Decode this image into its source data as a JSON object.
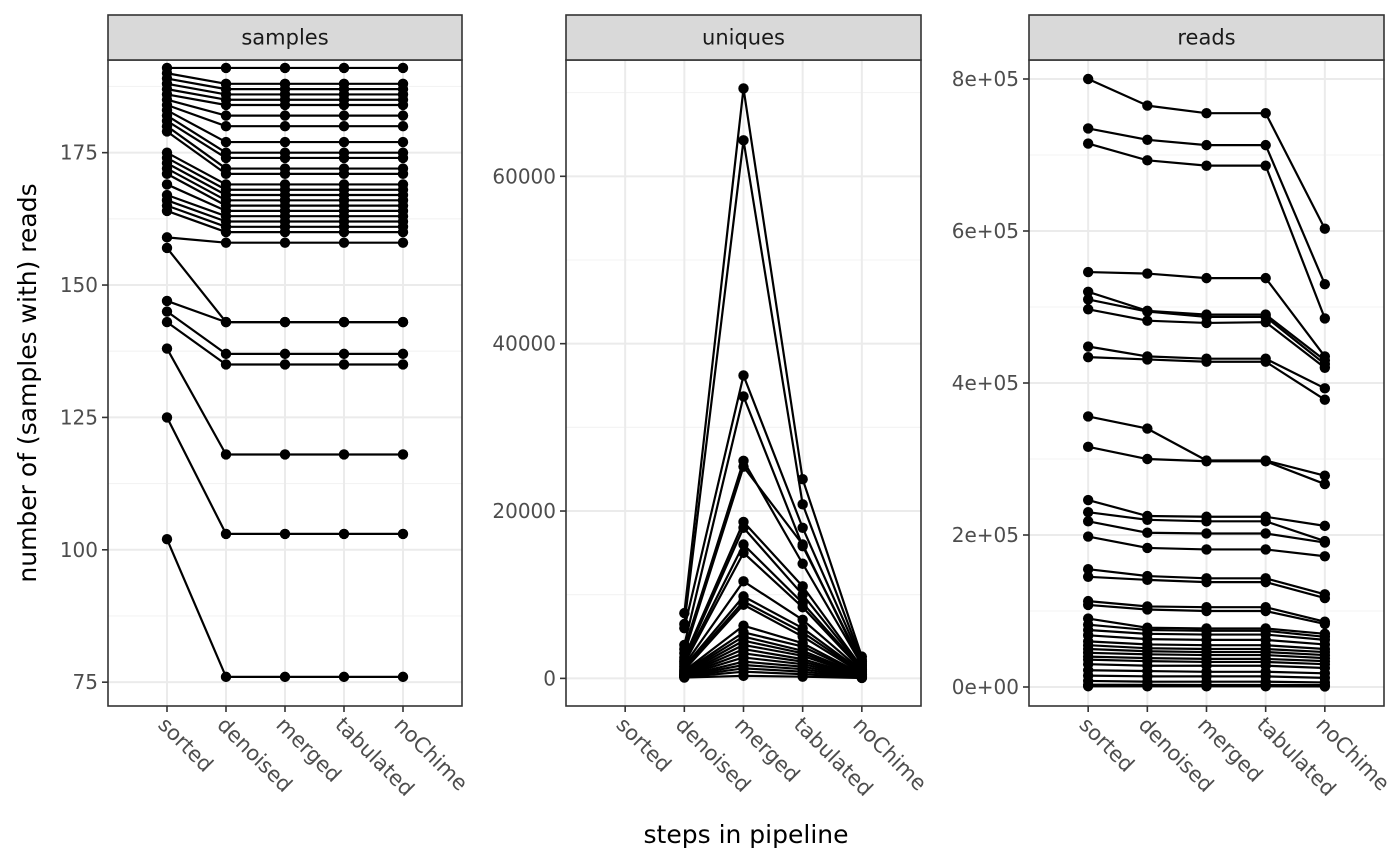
{
  "chart_data": {
    "type": "line",
    "xlabel": "steps in pipeline",
    "ylabel": "number of (samples with) reads",
    "categories": [
      "sorted",
      "denoised",
      "merged",
      "tabulated",
      "noChime"
    ],
    "grid": true,
    "legend": "none",
    "colors": {
      "line": "#000000",
      "strip_fill": "#d9d9d9",
      "panel_border": "#333333",
      "grid_major": "#ebebeb",
      "grid_minor": "#f3f3f3"
    },
    "panels": [
      {
        "title": "samples",
        "ylim": [
          70.5,
          192.5
        ],
        "yticks": [
          75,
          100,
          125,
          150,
          175
        ],
        "yticklabels": [
          "75",
          "100",
          "125",
          "150",
          "175"
        ],
        "series": [
          {
            "values": [
              191,
              191,
              191,
              191,
              191
            ]
          },
          {
            "values": [
              190,
              188,
              188,
              188,
              188
            ]
          },
          {
            "values": [
              189,
              187,
              187,
              187,
              187
            ]
          },
          {
            "values": [
              188,
              186,
              186,
              186,
              186
            ]
          },
          {
            "values": [
              187,
              185,
              185,
              185,
              185
            ]
          },
          {
            "values": [
              186,
              184,
              184,
              184,
              184
            ]
          },
          {
            "values": [
              185,
              182,
              182,
              182,
              182
            ]
          },
          {
            "values": [
              184,
              180,
              180,
              180,
              180
            ]
          },
          {
            "values": [
              183,
              177,
              177,
              177,
              177
            ]
          },
          {
            "values": [
              182,
              175,
              175,
              175,
              175
            ]
          },
          {
            "values": [
              181,
              174,
              174,
              174,
              174
            ]
          },
          {
            "values": [
              180,
              172,
              172,
              172,
              172
            ]
          },
          {
            "values": [
              179,
              171,
              171,
              171,
              171
            ]
          },
          {
            "values": [
              175,
              169,
              169,
              169,
              169
            ]
          },
          {
            "values": [
              174,
              168,
              168,
              168,
              168
            ]
          },
          {
            "values": [
              173,
              167,
              167,
              167,
              167
            ]
          },
          {
            "values": [
              172,
              166,
              166,
              166,
              166
            ]
          },
          {
            "values": [
              171,
              165,
              165,
              165,
              165
            ]
          },
          {
            "values": [
              169,
              164,
              164,
              164,
              164
            ]
          },
          {
            "values": [
              167,
              163,
              163,
              163,
              163
            ]
          },
          {
            "values": [
              166,
              162,
              162,
              162,
              162
            ]
          },
          {
            "values": [
              165,
              161,
              161,
              161,
              161
            ]
          },
          {
            "values": [
              164,
              160,
              160,
              160,
              160
            ]
          },
          {
            "values": [
              159,
              158,
              158,
              158,
              158
            ]
          },
          {
            "values": [
              157,
              143,
              143,
              143,
              143
            ]
          },
          {
            "values": [
              147,
              143,
              143,
              143,
              143
            ]
          },
          {
            "values": [
              145,
              137,
              137,
              137,
              137
            ]
          },
          {
            "values": [
              143,
              135,
              135,
              135,
              135
            ]
          },
          {
            "values": [
              138,
              118,
              118,
              118,
              118
            ]
          },
          {
            "values": [
              125,
              103,
              103,
              103,
              103
            ]
          },
          {
            "values": [
              102,
              76,
              76,
              76,
              76
            ]
          }
        ]
      },
      {
        "title": "uniques",
        "ylim": [
          -3300,
          73900
        ],
        "yticks": [
          0,
          20000,
          40000,
          60000
        ],
        "yticklabels": [
          "0",
          "20000",
          "40000",
          "60000"
        ],
        "series": [
          {
            "values": [
              null,
              7800,
              70500,
              23800,
              2600
            ]
          },
          {
            "values": [
              null,
              6500,
              64300,
              20800,
              2200
            ]
          },
          {
            "values": [
              null,
              6000,
              36200,
              18000,
              2000
            ]
          },
          {
            "values": [
              null,
              4000,
              33700,
              15800,
              1800
            ]
          },
          {
            "values": [
              null,
              3500,
              26000,
              13700,
              1600
            ]
          },
          {
            "values": [
              null,
              3000,
              25300,
              16000,
              1500
            ]
          },
          {
            "values": [
              null,
              2500,
              18700,
              11000,
              1300
            ]
          },
          {
            "values": [
              null,
              2200,
              18000,
              10000,
              1200
            ]
          },
          {
            "values": [
              null,
              2000,
              16000,
              9000,
              1100
            ]
          },
          {
            "values": [
              null,
              1800,
              15000,
              8500,
              1000
            ]
          },
          {
            "values": [
              null,
              1600,
              11600,
              7000,
              900
            ]
          },
          {
            "values": [
              null,
              1400,
              9800,
              6000,
              800
            ]
          },
          {
            "values": [
              null,
              1200,
              9200,
              5500,
              700
            ]
          },
          {
            "values": [
              null,
              1000,
              8800,
              5000,
              600
            ]
          },
          {
            "values": [
              null,
              900,
              6300,
              4200,
              500
            ]
          },
          {
            "values": [
              null,
              800,
              5500,
              3800,
              450
            ]
          },
          {
            "values": [
              null,
              700,
              5000,
              3300,
              400
            ]
          },
          {
            "values": [
              null,
              600,
              4500,
              3000,
              350
            ]
          },
          {
            "values": [
              null,
              500,
              4000,
              2700,
              300
            ]
          },
          {
            "values": [
              null,
              450,
              3500,
              2300,
              260
            ]
          },
          {
            "values": [
              null,
              400,
              3000,
              2000,
              220
            ]
          },
          {
            "values": [
              null,
              350,
              2500,
              1700,
              190
            ]
          },
          {
            "values": [
              null,
              300,
              2000,
              1400,
              160
            ]
          },
          {
            "values": [
              null,
              250,
              1600,
              1100,
              130
            ]
          },
          {
            "values": [
              null,
              200,
              1200,
              800,
              100
            ]
          },
          {
            "values": [
              null,
              150,
              800,
              500,
              80
            ]
          },
          {
            "values": [
              null,
              100,
              300,
              200,
              50
            ]
          }
        ]
      },
      {
        "title": "reads",
        "ylim": [
          -25000,
          825000
        ],
        "yticks": [
          0,
          200000,
          400000,
          600000,
          800000
        ],
        "yticklabels": [
          "0e+00",
          "2e+05",
          "4e+05",
          "6e+05",
          "8e+05"
        ],
        "series": [
          {
            "values": [
              800000,
              765000,
              755000,
              755000,
              603000
            ]
          },
          {
            "values": [
              735000,
              720000,
              713000,
              713000,
              530000
            ]
          },
          {
            "values": [
              715000,
              693000,
              686000,
              686000,
              485000
            ]
          },
          {
            "values": [
              546000,
              544000,
              538000,
              538000,
              435000
            ]
          },
          {
            "values": [
              520000,
              495000,
              490000,
              490000,
              430000
            ]
          },
          {
            "values": [
              510000,
              494000,
              487000,
              487000,
              425000
            ]
          },
          {
            "values": [
              497000,
              482000,
              479000,
              480000,
              420000
            ]
          },
          {
            "values": [
              448000,
              435000,
              432000,
              432000,
              393000
            ]
          },
          {
            "values": [
              434000,
              431000,
              428000,
              428000,
              378000
            ]
          },
          {
            "values": [
              356000,
              340000,
              298000,
              298000,
              278000
            ]
          },
          {
            "values": [
              316000,
              300000,
              297000,
              297000,
              267000
            ]
          },
          {
            "values": [
              246000,
              225000,
              224000,
              224000,
              212000
            ]
          },
          {
            "values": [
              230000,
              220000,
              218000,
              218000,
              192000
            ]
          },
          {
            "values": [
              218000,
              203000,
              202000,
              202000,
              190000
            ]
          },
          {
            "values": [
              198000,
              183000,
              181000,
              181000,
              172000
            ]
          },
          {
            "values": [
              155000,
              146000,
              143000,
              143000,
              122000
            ]
          },
          {
            "values": [
              145000,
              141000,
              138000,
              138000,
              117000
            ]
          },
          {
            "values": [
              113000,
              106000,
              105000,
              105000,
              86000
            ]
          },
          {
            "values": [
              108000,
              102000,
              100000,
              100000,
              83000
            ]
          },
          {
            "values": [
              90000,
              78000,
              77000,
              77000,
              70000
            ]
          },
          {
            "values": [
              82000,
              75000,
              74000,
              74000,
              66000
            ]
          },
          {
            "values": [
              75000,
              70000,
              69000,
              69000,
              62000
            ]
          },
          {
            "values": [
              68000,
              63000,
              62000,
              62000,
              56000
            ]
          },
          {
            "values": [
              60000,
              56000,
              55000,
              55000,
              50000
            ]
          },
          {
            "values": [
              55000,
              51000,
              50000,
              50000,
              46000
            ]
          },
          {
            "values": [
              50000,
              47000,
              46000,
              46000,
              42000
            ]
          },
          {
            "values": [
              45000,
              43000,
              42000,
              42000,
              38000
            ]
          },
          {
            "values": [
              40000,
              38000,
              37000,
              37000,
              34000
            ]
          },
          {
            "values": [
              36000,
              34000,
              33000,
              33000,
              30000
            ]
          },
          {
            "values": [
              30000,
              28000,
              28000,
              28000,
              25000
            ]
          },
          {
            "values": [
              22000,
              21000,
              20000,
              20000,
              18000
            ]
          },
          {
            "values": [
              15000,
              14000,
              14000,
              14000,
              12000
            ]
          },
          {
            "values": [
              8000,
              7000,
              7000,
              7000,
              6000
            ]
          },
          {
            "values": [
              3000,
              2800,
              2700,
              2700,
              2500
            ]
          },
          {
            "values": [
              1000,
              900,
              900,
              900,
              800
            ]
          }
        ]
      }
    ]
  }
}
